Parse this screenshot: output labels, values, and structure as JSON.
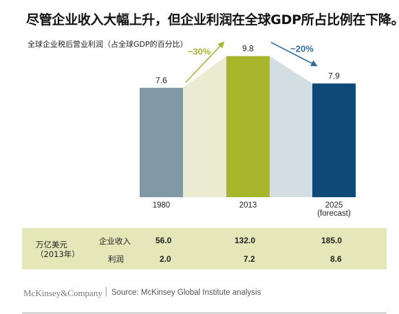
{
  "title": "尽管企业收入大幅上升，但企业利润在全球GDP所占比例在下降。",
  "subtitle": "全球企业税后营业利润（占全球GDP的百分比）",
  "chart_data": {
    "type": "bar",
    "categories": [
      "1980",
      "2013",
      "2025\n(forecast)"
    ],
    "category_lines": [
      [
        "1980"
      ],
      [
        "2013"
      ],
      [
        "2025",
        "(forecast)"
      ]
    ],
    "values": [
      7.6,
      9.8,
      7.9
    ],
    "value_labels": [
      "7.6",
      "9.8",
      "7.9"
    ],
    "bar_colors": [
      "#8199a6",
      "#a8b62c",
      "#0e4a78"
    ],
    "band_colors": [
      "#eaebd0",
      "#d3dee2"
    ],
    "annotations": [
      {
        "text": "~30%",
        "color": "#a8b62c",
        "from": 0,
        "to": 1
      },
      {
        "text": "~20%",
        "color": "#2a6ea0",
        "from": 1,
        "to": 2
      }
    ],
    "ylim": [
      0,
      10.5
    ]
  },
  "table": {
    "unit_line1": "万亿美元",
    "unit_line2": "（2013年）",
    "rows": [
      {
        "label": "企业收入",
        "values": [
          "56.0",
          "132.0",
          "185.0"
        ]
      },
      {
        "label": "利润",
        "values": [
          "2.0",
          "7.2",
          "8.6"
        ]
      }
    ]
  },
  "footer": {
    "brand": "McKinsey&Company",
    "separator": "|",
    "source": "Source: McKinsey Global Institute analysis"
  }
}
